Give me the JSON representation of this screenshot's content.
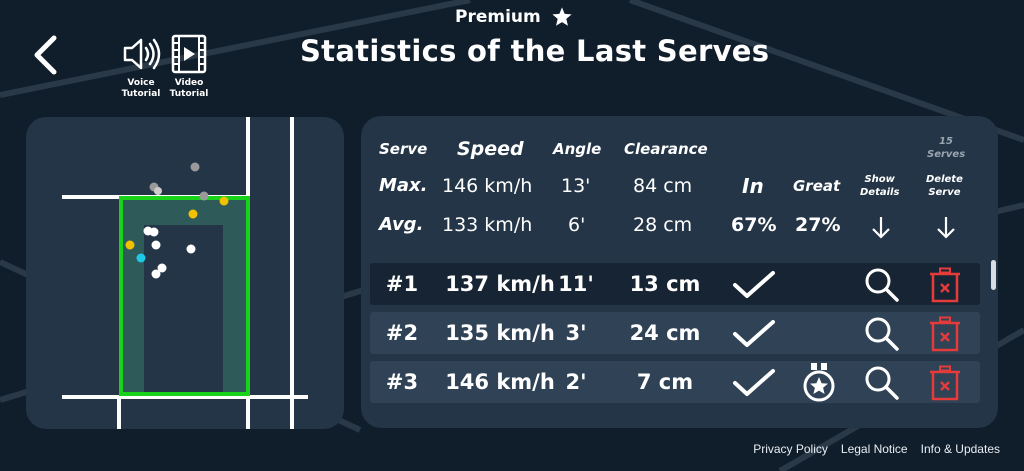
{
  "premium": {
    "label": "Premium",
    "icon": "star-icon"
  },
  "nav": {
    "back_icon": "back-chevron-icon"
  },
  "tutorials": [
    {
      "label_line1": "Voice",
      "label_line2": "Tutorial",
      "icon": "speaker-icon"
    },
    {
      "label_line1": "Video",
      "label_line2": "Tutorial",
      "icon": "film-play-icon"
    }
  ],
  "page_title": "Statistics of the Last Serves",
  "table": {
    "headers": {
      "serve": "Serve",
      "speed": "Speed",
      "angle": "Angle",
      "clearance": "Clearance",
      "serve_count": "15",
      "serves_label": "Serves",
      "in": "In",
      "great": "Great",
      "show_line1": "Show",
      "show_line2": "Details",
      "delete_line1": "Delete",
      "delete_line2": "Serve"
    },
    "max": {
      "label": "Max.",
      "speed": "146 km/h",
      "angle": "13'",
      "clearance": "84 cm"
    },
    "avg": {
      "label": "Avg.",
      "speed": "133 km/h",
      "angle": "6'",
      "clearance": "28 cm",
      "in_pct": "67%",
      "great_pct": "27%"
    },
    "rows": [
      {
        "num": "#1",
        "speed": "137 km/h",
        "angle": "11'",
        "clearance": "13 cm",
        "in": true,
        "great": false
      },
      {
        "num": "#2",
        "speed": "135 km/h",
        "angle": "3'",
        "clearance": "24 cm",
        "in": true,
        "great": false
      },
      {
        "num": "#3",
        "speed": "146 km/h",
        "angle": "2'",
        "clearance": "7 cm",
        "in": true,
        "great": true
      }
    ]
  },
  "court": {
    "colors": {
      "service_box": "#19d31a",
      "target_zone": "#2e5a5a",
      "lines": "#ffffff",
      "ball_in": "#ffffff",
      "ball_out": "#9a9a9a",
      "ball_great": "#f2c100",
      "ball_last": "#1ec8e6"
    }
  },
  "footer": {
    "privacy": "Privacy Policy",
    "legal": "Legal Notice",
    "info": "Info & Updates"
  },
  "colors": {
    "background": "#101d2a",
    "panel": "#233547",
    "row_dark": "#162433",
    "row_light": "#2f4256",
    "delete_red": "#e63b3b"
  }
}
